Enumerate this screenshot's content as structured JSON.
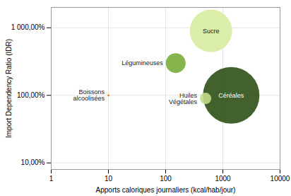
{
  "chart_data": {
    "type": "bubble",
    "xlabel": "Apports caloriques journaliers (kcal/hab/jour)",
    "ylabel": "Import Dependency Ratio (IDR)",
    "log": true,
    "grid": true,
    "xlim": [
      1,
      10000
    ],
    "ylim": [
      0.08,
      20
    ],
    "xticks": [
      1,
      10,
      100,
      1000,
      10000
    ],
    "yticks": [
      {
        "value": 0.1,
        "label": "10,00%"
      },
      {
        "value": 1.0,
        "label": "100,00%"
      },
      {
        "value": 10.0,
        "label": "1 000,00%"
      }
    ],
    "x": [
      10,
      150,
      500,
      620,
      1400
    ],
    "values": [
      1.0,
      3.0,
      0.9,
      9.0,
      1.0
    ],
    "sizes": [
      3,
      28,
      16,
      60,
      80
    ],
    "colors": [
      "#E07820",
      "#7AAD3A",
      "#C2DA8A",
      "#D6ECA0",
      "#2D5016"
    ],
    "annotations": [
      "Boissons\nalcoolisées",
      "Légumineuses",
      "Huiles\nVégétales",
      "Sucre",
      "Céréales"
    ]
  }
}
